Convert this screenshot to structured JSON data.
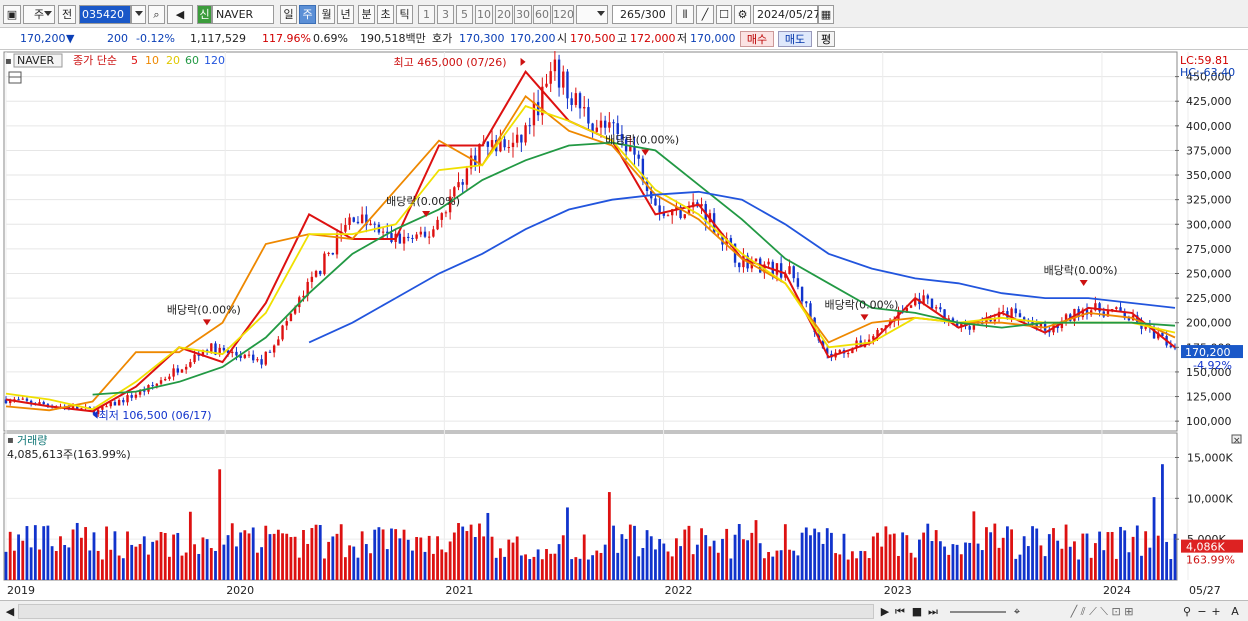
{
  "toolbar": {
    "period_left": "주",
    "prev_label": "전",
    "stock_code": "035420",
    "new_badge": "신",
    "stock_name": "NAVER",
    "periods": [
      "일",
      "주",
      "월",
      "년",
      "분",
      "초",
      "틱"
    ],
    "selected_period": "주",
    "intervals": [
      "1",
      "3",
      "5",
      "10",
      "20",
      "30",
      "60",
      "120"
    ],
    "count_display": "265",
    "count_total": "/300",
    "date": "2024/05/27"
  },
  "infobar": {
    "price": "170,200",
    "change": "200",
    "change_pct": "-0.12%",
    "volume": "1,117,529",
    "volume_ratio": "117.96%",
    "turnover": "0.69%",
    "amount": "190,518백만",
    "ask_label": "호가",
    "ask": "170,300",
    "bid": "170,200",
    "open_label": "시",
    "open": "170,500",
    "high_label": "고",
    "high": "172,000",
    "low_label": "저",
    "low": "170,000",
    "buy_label": "매수",
    "sell_label": "매도",
    "eval_label": "평"
  },
  "legend": {
    "name": "NAVER",
    "title": "종가 단순",
    "ma_periods": [
      "5",
      "10",
      "20",
      "60",
      "120"
    ],
    "ma_colors": [
      "#dd1111",
      "#ee8800",
      "#f0e000",
      "#229944",
      "#2255dd"
    ]
  },
  "price_panel": {
    "lc": "LC:59.81",
    "hc": "HC:-63.40",
    "y_ticks": [
      "450,000",
      "425,000",
      "400,000",
      "375,000",
      "350,000",
      "325,000",
      "300,000",
      "275,000",
      "250,000",
      "225,000",
      "200,000",
      "175,000",
      "150,000",
      "125,000",
      "100,000"
    ],
    "current_price": "170,200",
    "current_change": "-4.92%",
    "high_annotation": "최고 465,000 (07/26)",
    "low_annotation": "최저 106,500 (06/17)",
    "dividend_label": "배당락(0.00%)"
  },
  "volume_panel": {
    "title": "거래량",
    "current": "4,085,613주(163.99%)",
    "y_ticks": [
      "15,000K",
      "10,000K",
      "5,000K"
    ],
    "current_badge": "4,086K",
    "current_pct": "163.99%"
  },
  "x_axis": {
    "labels": [
      "2019",
      "2020",
      "2021",
      "2022",
      "2023",
      "2024",
      "05/27"
    ]
  },
  "colors": {
    "up": "#dd1111",
    "down": "#1133cc",
    "price_badge": "#1a58c8",
    "volume_badge": "#dd2222"
  },
  "chart_data": {
    "type": "line",
    "title": "",
    "xlabel": "",
    "ylabel": "",
    "ylim": [
      90000,
      475000
    ],
    "x": [
      "2019-01",
      "2019-04",
      "2019-06",
      "2019-09",
      "2019-12",
      "2020-03",
      "2020-05",
      "2020-08",
      "2020-10",
      "2020-12",
      "2021-03",
      "2021-05",
      "2021-07",
      "2021-09",
      "2021-11",
      "2022-01",
      "2022-03",
      "2022-05",
      "2022-08",
      "2022-10",
      "2022-12",
      "2023-03",
      "2023-05",
      "2023-08",
      "2023-10",
      "2023-12",
      "2024-02",
      "2024-05"
    ],
    "series": [
      {
        "values": [
          122000,
          115000,
          110000,
          135000,
          175000,
          160000,
          220000,
          310000,
          285000,
          285000,
          380000,
          380000,
          455000,
          405000,
          385000,
          310000,
          320000,
          265000,
          250000,
          165000,
          180000,
          225000,
          195000,
          210000,
          190000,
          215000,
          210000,
          175000
        ]
      },
      {
        "values": [
          115000,
          111000,
          120000,
          170000,
          170000,
          200000,
          280000,
          290000,
          285000,
          335000,
          385000,
          360000,
          430000,
          395000,
          380000,
          330000,
          305000,
          265000,
          240000,
          180000,
          200000,
          205000,
          200000,
          200000,
          195000,
          210000,
          205000,
          185000
        ]
      },
      {
        "values": [
          128000,
          122000,
          112000,
          140000,
          175000,
          168000,
          210000,
          290000,
          290000,
          300000,
          355000,
          360000,
          420000,
          405000,
          385000,
          335000,
          310000,
          270000,
          240000,
          175000,
          180000,
          205000,
          200000,
          205000,
          200000,
          200000,
          200000,
          190000
        ]
      },
      {
        "values": [
          null,
          null,
          127000,
          130000,
          140000,
          155000,
          185000,
          230000,
          270000,
          295000,
          315000,
          345000,
          365000,
          380000,
          383000,
          375000,
          340000,
          305000,
          265000,
          240000,
          215000,
          210000,
          200000,
          195000,
          200000,
          200000,
          200000,
          197000
        ]
      },
      {
        "values": [
          null,
          null,
          null,
          null,
          null,
          null,
          null,
          180000,
          200000,
          225000,
          250000,
          270000,
          295000,
          315000,
          325000,
          330000,
          333000,
          325000,
          300000,
          270000,
          255000,
          245000,
          240000,
          230000,
          225000,
          225000,
          220000,
          215000
        ]
      }
    ],
    "high": {
      "value": 465000,
      "date": "07/26"
    },
    "low": {
      "value": 106500,
      "date": "06/17"
    },
    "volume_ylim": [
      0,
      18000000
    ]
  }
}
